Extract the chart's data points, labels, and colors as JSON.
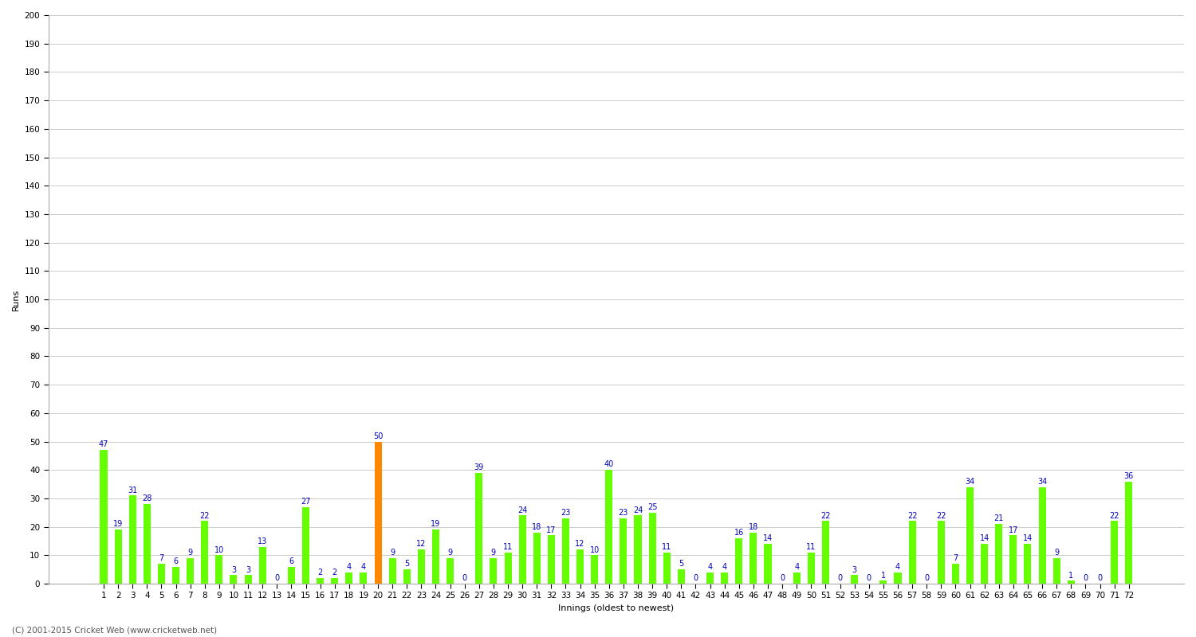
{
  "innings": [
    1,
    2,
    3,
    4,
    5,
    6,
    7,
    8,
    9,
    10,
    11,
    12,
    13,
    14,
    15,
    16,
    17,
    18,
    19,
    20,
    21,
    22,
    23,
    24,
    25,
    26,
    27,
    28,
    29,
    30,
    31,
    32,
    33,
    34,
    35,
    36,
    37,
    38,
    39,
    40,
    41,
    42,
    43,
    44,
    45,
    46,
    47,
    48,
    49,
    50,
    51,
    52,
    53,
    54,
    55,
    56,
    57,
    58,
    59,
    60,
    61,
    62,
    63,
    64,
    65,
    66,
    67,
    68,
    69,
    70,
    71,
    72
  ],
  "values": [
    47,
    19,
    31,
    28,
    7,
    6,
    9,
    22,
    10,
    3,
    3,
    13,
    0,
    6,
    27,
    2,
    2,
    4,
    4,
    50,
    9,
    5,
    12,
    19,
    9,
    0,
    39,
    9,
    11,
    24,
    18,
    17,
    23,
    12,
    10,
    40,
    23,
    24,
    25,
    11,
    5,
    0,
    4,
    4,
    16,
    18,
    14,
    0,
    4,
    11,
    22,
    0,
    3,
    0,
    1,
    4,
    22,
    0,
    22,
    7,
    34,
    14,
    21,
    17,
    14,
    34,
    9,
    1,
    0,
    0,
    22,
    36
  ],
  "orange_index": 19,
  "bar_color_green": "#66ff00",
  "bar_color_orange": "#ff8800",
  "ylabel": "Runs",
  "xlabel": "Innings (oldest to newest)",
  "ylim": [
    0,
    200
  ],
  "yticks": [
    0,
    10,
    20,
    30,
    40,
    50,
    60,
    70,
    80,
    90,
    100,
    110,
    120,
    130,
    140,
    150,
    160,
    170,
    180,
    190,
    200
  ],
  "label_color": "#0000bb",
  "label_fontsize": 7,
  "background_color": "#ffffff",
  "grid_color": "#cccccc",
  "axis_label_fontsize": 8,
  "tick_fontsize": 7.5,
  "bar_width": 0.5,
  "footer": "(C) 2001-2015 Cricket Web (www.cricketweb.net)"
}
